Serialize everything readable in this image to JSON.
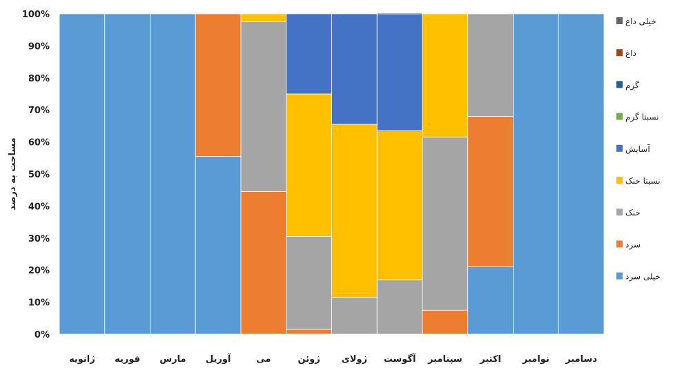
{
  "chart_data": {
    "type": "bar",
    "stacked": true,
    "percent": true,
    "ylabel": "مساحت به درصد",
    "ylim": [
      0,
      100
    ],
    "yticks": [
      "0%",
      "10%",
      "20%",
      "30%",
      "40%",
      "50%",
      "60%",
      "70%",
      "80%",
      "90%",
      "100%"
    ],
    "categories": [
      "ژانویه",
      "فوریه",
      "مارس",
      "آوریل",
      "می",
      "ژوئن",
      "ژولای",
      "آگوست",
      "سپتامبر",
      "اکتبر",
      "نوامبر",
      "دسامبر"
    ],
    "grid": false,
    "legend_position": "right",
    "series": [
      {
        "name": "خیلی سرد",
        "color": "#5B9BD5",
        "values": [
          100,
          100,
          100,
          55.5,
          0,
          0,
          0,
          0,
          0,
          21,
          100,
          100
        ]
      },
      {
        "name": "سرد",
        "color": "#ED7D31",
        "values": [
          0,
          0,
          0,
          44.5,
          44.5,
          1.5,
          0,
          0,
          7.5,
          47,
          0,
          0
        ]
      },
      {
        "name": "خنک",
        "color": "#A5A5A5",
        "values": [
          0,
          0,
          0,
          0,
          53,
          29,
          11.5,
          17,
          54,
          32,
          0,
          0
        ]
      },
      {
        "name": "نسبتا خنک",
        "color": "#FFC000",
        "values": [
          0,
          0,
          0,
          0,
          2.5,
          44.5,
          54,
          46.5,
          38.5,
          0,
          0,
          0
        ]
      },
      {
        "name": "آسایش",
        "color": "#4472C4",
        "values": [
          0,
          0,
          0,
          0,
          0,
          25,
          34.5,
          36.5,
          0,
          0,
          0,
          0
        ]
      },
      {
        "name": "نسبتا گرم",
        "color": "#70AD47",
        "values": [
          0,
          0,
          0,
          0,
          0,
          0,
          0,
          0.3,
          0,
          0,
          0,
          0
        ]
      },
      {
        "name": "گرم",
        "color": "#255E91",
        "values": [
          0,
          0,
          0,
          0,
          0,
          0,
          0,
          0,
          0,
          0,
          0,
          0
        ]
      },
      {
        "name": "داغ",
        "color": "#9E480E",
        "values": [
          0,
          0,
          0,
          0,
          0,
          0,
          0,
          0,
          0,
          0,
          0,
          0
        ]
      },
      {
        "name": "خیلی داغ",
        "color": "#636363",
        "values": [
          0,
          0,
          0,
          0,
          0,
          0,
          0,
          0,
          0,
          0,
          0,
          0
        ]
      }
    ]
  }
}
